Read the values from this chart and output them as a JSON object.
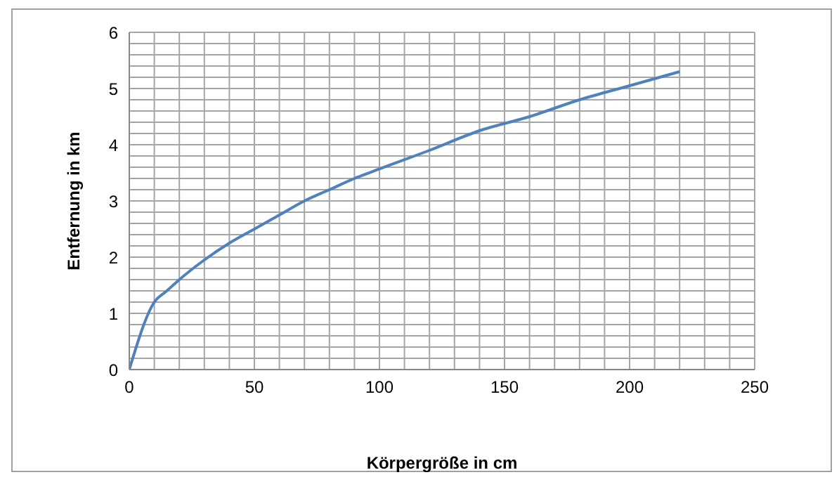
{
  "chart_data": {
    "type": "line",
    "xlabel": "Körpergröße in cm",
    "ylabel": "Entfernung in km",
    "x": [
      0,
      10,
      15,
      20,
      30,
      40,
      50,
      60,
      70,
      80,
      90,
      100,
      120,
      140,
      160,
      180,
      200,
      220
    ],
    "series": [
      {
        "color": "#4f81bd",
        "values": [
          0,
          1.2,
          1.4,
          1.6,
          1.95,
          2.25,
          2.5,
          2.75,
          3.0,
          3.2,
          3.4,
          3.57,
          3.9,
          4.25,
          4.5,
          4.8,
          5.05,
          5.3
        ]
      }
    ],
    "xlim": [
      0,
      250
    ],
    "xticks": [
      0,
      {
        "value": 10,
        "label": null
      },
      {
        "value": 20,
        "label": null
      },
      {
        "value": 30,
        "label": null
      },
      {
        "value": 40,
        "label": null
      },
      50,
      {
        "value": 60,
        "label": null
      },
      {
        "value": 70,
        "label": null
      },
      {
        "value": 80,
        "label": null
      },
      {
        "value": 90,
        "label": null
      },
      100,
      {
        "value": 110,
        "label": null
      },
      {
        "value": 120,
        "label": null
      },
      {
        "value": 130,
        "label": null
      },
      {
        "value": 140,
        "label": null
      },
      150,
      {
        "value": 160,
        "label": null
      },
      {
        "value": 170,
        "label": null
      },
      {
        "value": 180,
        "label": null
      },
      {
        "value": 190,
        "label": null
      },
      200,
      {
        "value": 210,
        "label": null
      },
      {
        "value": 220,
        "label": null
      },
      {
        "value": 230,
        "label": null
      },
      {
        "value": 240,
        "label": null
      },
      250
    ],
    "ylim": [
      0,
      6
    ],
    "yticks": [
      0,
      {
        "value": 0.2,
        "label": null
      },
      {
        "value": 0.4,
        "label": null
      },
      {
        "value": 0.6,
        "label": null
      },
      {
        "value": 0.8,
        "label": null
      },
      1,
      {
        "value": 1.2,
        "label": null
      },
      {
        "value": 1.4,
        "label": null
      },
      {
        "value": 1.6,
        "label": null
      },
      {
        "value": 1.8,
        "label": null
      },
      2,
      {
        "value": 2.2,
        "label": null
      },
      {
        "value": 2.4,
        "label": null
      },
      {
        "value": 2.6,
        "label": null
      },
      {
        "value": 2.8,
        "label": null
      },
      3,
      {
        "value": 3.2,
        "label": null
      },
      {
        "value": 3.4,
        "label": null
      },
      {
        "value": 3.6,
        "label": null
      },
      {
        "value": 3.8,
        "label": null
      },
      4,
      {
        "value": 4.2,
        "label": null
      },
      {
        "value": 4.4,
        "label": null
      },
      {
        "value": 4.6,
        "label": null
      },
      {
        "value": 4.8,
        "label": null
      },
      5,
      {
        "value": 5.2,
        "label": null
      },
      {
        "value": 5.4,
        "label": null
      },
      {
        "value": 5.6,
        "label": null
      },
      {
        "value": 5.8,
        "label": null
      },
      6
    ],
    "grid": true,
    "marker": "none",
    "line_style": "solid"
  }
}
